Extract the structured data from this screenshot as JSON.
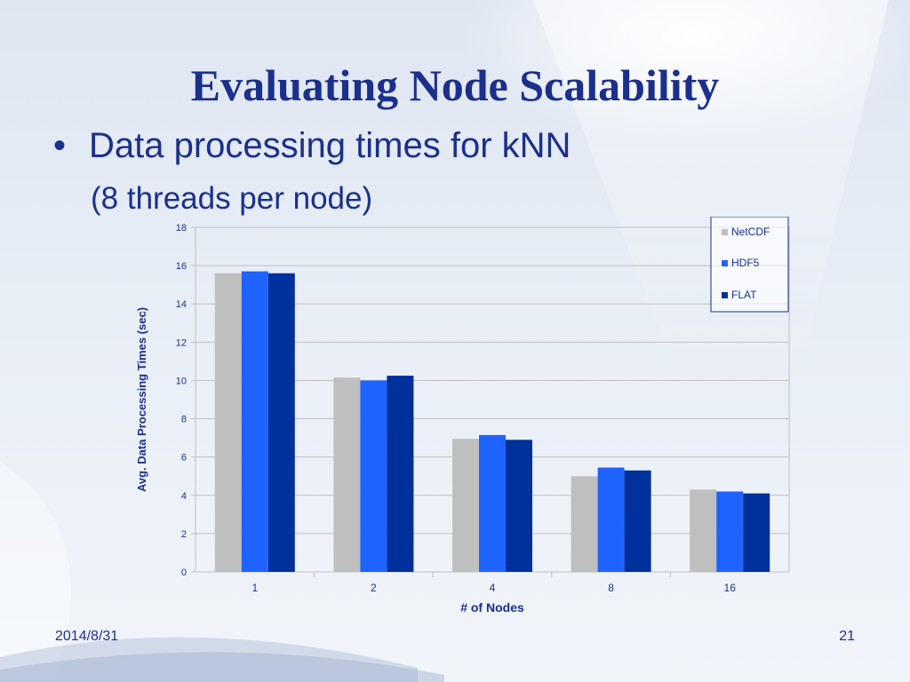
{
  "slide": {
    "title": "Evaluating Node Scalability",
    "bullet_glyph": "•",
    "bullet_text": "Data processing times for kNN",
    "sub_text": "(8 threads per node)",
    "date": "2014/8/31",
    "page_number": "21"
  },
  "chart_data": {
    "type": "bar",
    "title": "",
    "xlabel": "# of Nodes",
    "ylabel": "Avg. Data Processing Times (sec)",
    "categories": [
      "1",
      "2",
      "4",
      "8",
      "16"
    ],
    "series": [
      {
        "name": "NetCDF",
        "color": "#bfbfbf",
        "values": [
          15.6,
          10.15,
          6.95,
          5.0,
          4.3
        ]
      },
      {
        "name": "HDF5",
        "color": "#1f63ff",
        "values": [
          15.7,
          10.0,
          7.15,
          5.45,
          4.2
        ]
      },
      {
        "name": "FLAT",
        "color": "#00309b",
        "values": [
          15.6,
          10.25,
          6.9,
          5.3,
          4.1
        ]
      }
    ],
    "ylim": [
      0,
      18
    ],
    "yticks": [
      0,
      2,
      4,
      6,
      8,
      10,
      12,
      14,
      16,
      18
    ],
    "grid": true,
    "legend": "top-right"
  }
}
